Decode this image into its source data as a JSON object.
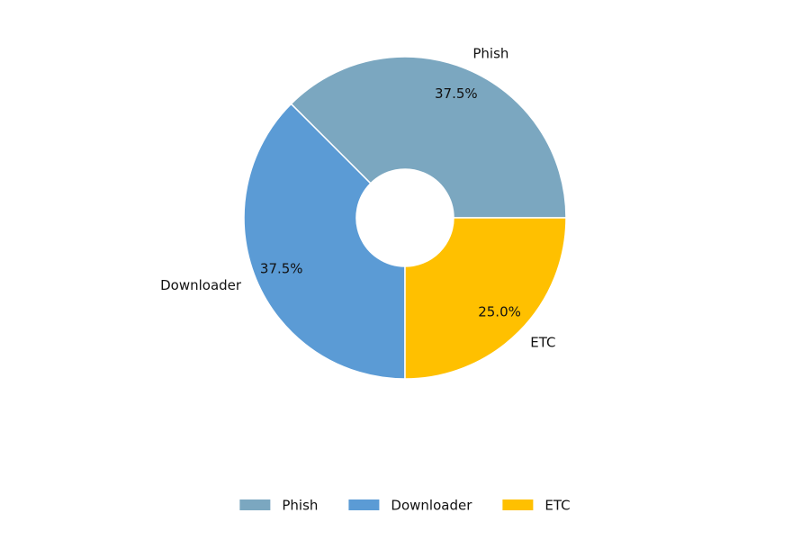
{
  "chart_data": {
    "type": "donut",
    "categories": [
      "Phish",
      "Downloader",
      "ETC"
    ],
    "values": [
      37.5,
      37.5,
      25.0
    ],
    "value_labels": [
      "37.5%",
      "37.5%",
      "25.0%"
    ],
    "colors": [
      "#7ba7c0",
      "#5b9bd5",
      "#ffc000"
    ],
    "legend": "bottom"
  }
}
